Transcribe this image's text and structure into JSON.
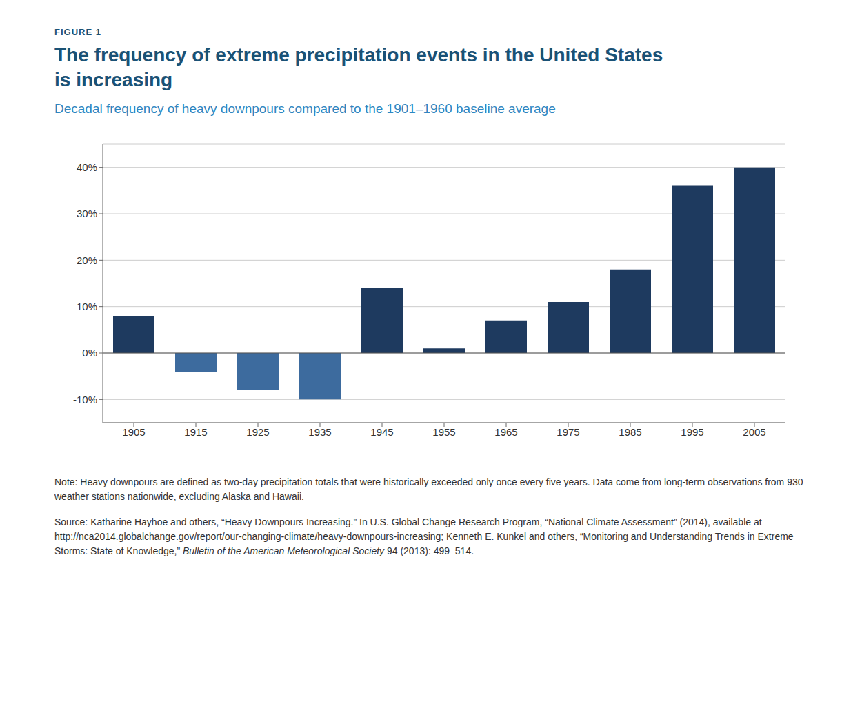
{
  "chart_data": {
    "type": "bar",
    "figure_label": "FIGURE 1",
    "title": "The frequency of extreme precipitation events in the United States is increasing",
    "subtitle": "Decadal frequency of heavy downpours compared to the 1901–1960 baseline average",
    "categories": [
      "1905",
      "1915",
      "1925",
      "1935",
      "1945",
      "1955",
      "1965",
      "1975",
      "1985",
      "1995",
      "2005"
    ],
    "values": [
      8,
      -4,
      -8,
      -10,
      14,
      1,
      7,
      11,
      18,
      36,
      40
    ],
    "colors": [
      "#1e3a5f",
      "#3d6b9e",
      "#3d6b9e",
      "#3d6b9e",
      "#1e3a5f",
      "#1e3a5f",
      "#1e3a5f",
      "#1e3a5f",
      "#1e3a5f",
      "#1e3a5f",
      "#1e3a5f"
    ],
    "ylim": [
      -15,
      45
    ],
    "yticks": [
      {
        "value": -10,
        "label": "-10%"
      },
      {
        "value": 0,
        "label": "0%"
      },
      {
        "value": 10,
        "label": "10%"
      },
      {
        "value": 20,
        "label": "20%"
      },
      {
        "value": 30,
        "label": "30%"
      },
      {
        "value": 40,
        "label": "40%"
      }
    ],
    "grid": true,
    "note": "Note: Heavy downpours are defined as two-day precipitation totals that were historically exceeded only once every five years. Data come from long-term observations from 930 weather stations nationwide, excluding Alaska and Hawaii.",
    "source": [
      "Source: Katharine Hayhoe and others, “Heavy Downpours Increasing.” In U.S. Global Change Research Program, “National Climate Assessment” (2014), available at http://nca2014.globalchange.gov/report/our-changing-climate/heavy-downpours-increasing; Kenneth E. Kunkel and others, “Monitoring and Understanding Trends in Extreme Storms: State of Knowledge,” ",
      "Bulletin of the American Meteorological Society",
      " 94 (2013): 499–514."
    ]
  }
}
